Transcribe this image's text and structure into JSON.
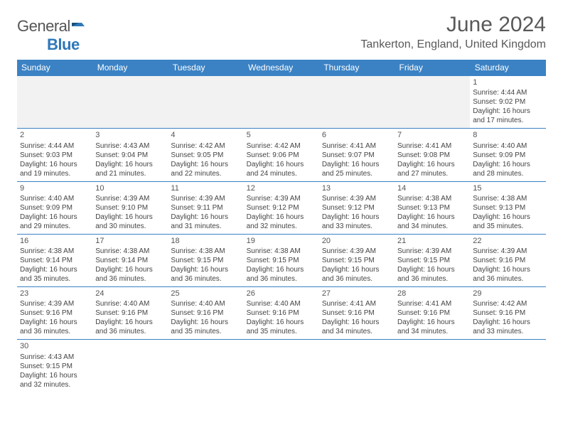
{
  "brand": {
    "name_part1": "General",
    "name_part2": "Blue"
  },
  "title": "June 2024",
  "location": "Tankerton, England, United Kingdom",
  "colors": {
    "header_bg": "#3b82c4",
    "header_text": "#ffffff",
    "border": "#3b82c4",
    "text": "#444444"
  },
  "weekdays": [
    "Sunday",
    "Monday",
    "Tuesday",
    "Wednesday",
    "Thursday",
    "Friday",
    "Saturday"
  ],
  "weeks": [
    [
      null,
      null,
      null,
      null,
      null,
      null,
      {
        "day": "1",
        "sunrise": "Sunrise: 4:44 AM",
        "sunset": "Sunset: 9:02 PM",
        "daylight1": "Daylight: 16 hours",
        "daylight2": "and 17 minutes."
      }
    ],
    [
      {
        "day": "2",
        "sunrise": "Sunrise: 4:44 AM",
        "sunset": "Sunset: 9:03 PM",
        "daylight1": "Daylight: 16 hours",
        "daylight2": "and 19 minutes."
      },
      {
        "day": "3",
        "sunrise": "Sunrise: 4:43 AM",
        "sunset": "Sunset: 9:04 PM",
        "daylight1": "Daylight: 16 hours",
        "daylight2": "and 21 minutes."
      },
      {
        "day": "4",
        "sunrise": "Sunrise: 4:42 AM",
        "sunset": "Sunset: 9:05 PM",
        "daylight1": "Daylight: 16 hours",
        "daylight2": "and 22 minutes."
      },
      {
        "day": "5",
        "sunrise": "Sunrise: 4:42 AM",
        "sunset": "Sunset: 9:06 PM",
        "daylight1": "Daylight: 16 hours",
        "daylight2": "and 24 minutes."
      },
      {
        "day": "6",
        "sunrise": "Sunrise: 4:41 AM",
        "sunset": "Sunset: 9:07 PM",
        "daylight1": "Daylight: 16 hours",
        "daylight2": "and 25 minutes."
      },
      {
        "day": "7",
        "sunrise": "Sunrise: 4:41 AM",
        "sunset": "Sunset: 9:08 PM",
        "daylight1": "Daylight: 16 hours",
        "daylight2": "and 27 minutes."
      },
      {
        "day": "8",
        "sunrise": "Sunrise: 4:40 AM",
        "sunset": "Sunset: 9:09 PM",
        "daylight1": "Daylight: 16 hours",
        "daylight2": "and 28 minutes."
      }
    ],
    [
      {
        "day": "9",
        "sunrise": "Sunrise: 4:40 AM",
        "sunset": "Sunset: 9:09 PM",
        "daylight1": "Daylight: 16 hours",
        "daylight2": "and 29 minutes."
      },
      {
        "day": "10",
        "sunrise": "Sunrise: 4:39 AM",
        "sunset": "Sunset: 9:10 PM",
        "daylight1": "Daylight: 16 hours",
        "daylight2": "and 30 minutes."
      },
      {
        "day": "11",
        "sunrise": "Sunrise: 4:39 AM",
        "sunset": "Sunset: 9:11 PM",
        "daylight1": "Daylight: 16 hours",
        "daylight2": "and 31 minutes."
      },
      {
        "day": "12",
        "sunrise": "Sunrise: 4:39 AM",
        "sunset": "Sunset: 9:12 PM",
        "daylight1": "Daylight: 16 hours",
        "daylight2": "and 32 minutes."
      },
      {
        "day": "13",
        "sunrise": "Sunrise: 4:39 AM",
        "sunset": "Sunset: 9:12 PM",
        "daylight1": "Daylight: 16 hours",
        "daylight2": "and 33 minutes."
      },
      {
        "day": "14",
        "sunrise": "Sunrise: 4:38 AM",
        "sunset": "Sunset: 9:13 PM",
        "daylight1": "Daylight: 16 hours",
        "daylight2": "and 34 minutes."
      },
      {
        "day": "15",
        "sunrise": "Sunrise: 4:38 AM",
        "sunset": "Sunset: 9:13 PM",
        "daylight1": "Daylight: 16 hours",
        "daylight2": "and 35 minutes."
      }
    ],
    [
      {
        "day": "16",
        "sunrise": "Sunrise: 4:38 AM",
        "sunset": "Sunset: 9:14 PM",
        "daylight1": "Daylight: 16 hours",
        "daylight2": "and 35 minutes."
      },
      {
        "day": "17",
        "sunrise": "Sunrise: 4:38 AM",
        "sunset": "Sunset: 9:14 PM",
        "daylight1": "Daylight: 16 hours",
        "daylight2": "and 36 minutes."
      },
      {
        "day": "18",
        "sunrise": "Sunrise: 4:38 AM",
        "sunset": "Sunset: 9:15 PM",
        "daylight1": "Daylight: 16 hours",
        "daylight2": "and 36 minutes."
      },
      {
        "day": "19",
        "sunrise": "Sunrise: 4:38 AM",
        "sunset": "Sunset: 9:15 PM",
        "daylight1": "Daylight: 16 hours",
        "daylight2": "and 36 minutes."
      },
      {
        "day": "20",
        "sunrise": "Sunrise: 4:39 AM",
        "sunset": "Sunset: 9:15 PM",
        "daylight1": "Daylight: 16 hours",
        "daylight2": "and 36 minutes."
      },
      {
        "day": "21",
        "sunrise": "Sunrise: 4:39 AM",
        "sunset": "Sunset: 9:15 PM",
        "daylight1": "Daylight: 16 hours",
        "daylight2": "and 36 minutes."
      },
      {
        "day": "22",
        "sunrise": "Sunrise: 4:39 AM",
        "sunset": "Sunset: 9:16 PM",
        "daylight1": "Daylight: 16 hours",
        "daylight2": "and 36 minutes."
      }
    ],
    [
      {
        "day": "23",
        "sunrise": "Sunrise: 4:39 AM",
        "sunset": "Sunset: 9:16 PM",
        "daylight1": "Daylight: 16 hours",
        "daylight2": "and 36 minutes."
      },
      {
        "day": "24",
        "sunrise": "Sunrise: 4:40 AM",
        "sunset": "Sunset: 9:16 PM",
        "daylight1": "Daylight: 16 hours",
        "daylight2": "and 36 minutes."
      },
      {
        "day": "25",
        "sunrise": "Sunrise: 4:40 AM",
        "sunset": "Sunset: 9:16 PM",
        "daylight1": "Daylight: 16 hours",
        "daylight2": "and 35 minutes."
      },
      {
        "day": "26",
        "sunrise": "Sunrise: 4:40 AM",
        "sunset": "Sunset: 9:16 PM",
        "daylight1": "Daylight: 16 hours",
        "daylight2": "and 35 minutes."
      },
      {
        "day": "27",
        "sunrise": "Sunrise: 4:41 AM",
        "sunset": "Sunset: 9:16 PM",
        "daylight1": "Daylight: 16 hours",
        "daylight2": "and 34 minutes."
      },
      {
        "day": "28",
        "sunrise": "Sunrise: 4:41 AM",
        "sunset": "Sunset: 9:16 PM",
        "daylight1": "Daylight: 16 hours",
        "daylight2": "and 34 minutes."
      },
      {
        "day": "29",
        "sunrise": "Sunrise: 4:42 AM",
        "sunset": "Sunset: 9:16 PM",
        "daylight1": "Daylight: 16 hours",
        "daylight2": "and 33 minutes."
      }
    ],
    [
      {
        "day": "30",
        "sunrise": "Sunrise: 4:43 AM",
        "sunset": "Sunset: 9:15 PM",
        "daylight1": "Daylight: 16 hours",
        "daylight2": "and 32 minutes."
      },
      null,
      null,
      null,
      null,
      null,
      null
    ]
  ]
}
